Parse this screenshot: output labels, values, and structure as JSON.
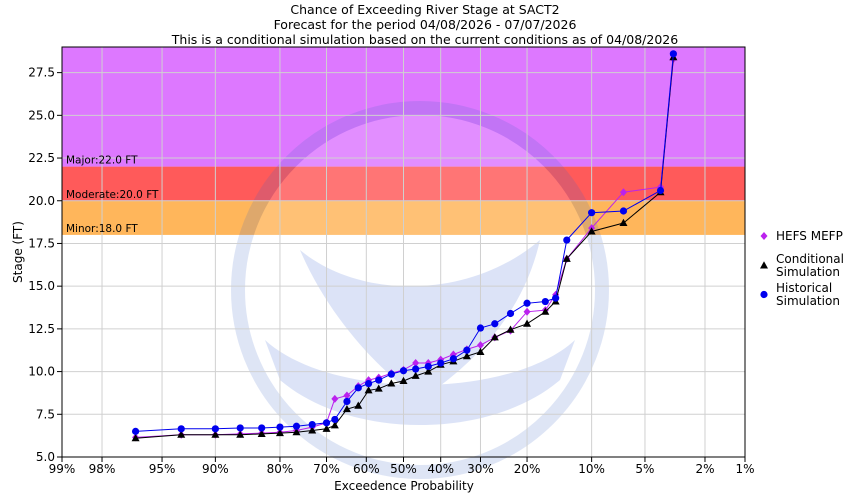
{
  "chart_data": {
    "type": "line",
    "title_lines": [
      "Chance of Exceeding River Stage at SACT2",
      "Forecast for the period 04/08/2026 - 07/07/2026",
      "This is a conditional simulation based on the current conditions as of 04/08/2026"
    ],
    "xlabel": "Exceedence Probability",
    "ylabel": "Stage (FT)",
    "x_scale": "normal-probability (reversed)",
    "x_ticks": [
      {
        "p": 0.99,
        "label": "99%"
      },
      {
        "p": 0.98,
        "label": "98%"
      },
      {
        "p": 0.95,
        "label": "95%"
      },
      {
        "p": 0.9,
        "label": "90%"
      },
      {
        "p": 0.8,
        "label": "80%"
      },
      {
        "p": 0.7,
        "label": "70%"
      },
      {
        "p": 0.6,
        "label": "60%"
      },
      {
        "p": 0.5,
        "label": "50%"
      },
      {
        "p": 0.4,
        "label": "40%"
      },
      {
        "p": 0.3,
        "label": "30%"
      },
      {
        "p": 0.2,
        "label": "20%"
      },
      {
        "p": 0.1,
        "label": "10%"
      },
      {
        "p": 0.05,
        "label": "5%"
      },
      {
        "p": 0.02,
        "label": "2%"
      },
      {
        "p": 0.01,
        "label": "1%"
      }
    ],
    "y_ticks": [
      "5.0",
      "7.5",
      "10.0",
      "12.5",
      "15.0",
      "17.5",
      "20.0",
      "22.5",
      "25.0",
      "27.5"
    ],
    "ylim": [
      5.0,
      29.0
    ],
    "flood_bands": [
      {
        "name": "Minor",
        "label": "Minor:18.0 FT",
        "from": 18.0,
        "to": 20.0,
        "color": "#ffb65b"
      },
      {
        "name": "Moderate",
        "label": "Moderate:20.0 FT",
        "from": 20.0,
        "to": 22.0,
        "color": "#ff5a5a"
      },
      {
        "name": "Major",
        "label": "Major:22.0 FT",
        "from": 22.0,
        "to": 29.0,
        "color": "#dd78ff"
      }
    ],
    "watermark_text": [
      "NATIONAL OCEANIC AND ATMOSPHERIC ADMINISTRATION",
      "U.S. DEPARTMENT OF COMMERCE"
    ],
    "series": [
      {
        "name": "HEFS MEFP",
        "color": "#bb22ee",
        "marker": "diamond",
        "points": [
          [
            0.966,
            6.15
          ],
          [
            0.935,
            6.3
          ],
          [
            0.9,
            6.3
          ],
          [
            0.867,
            6.35
          ],
          [
            0.833,
            6.4
          ],
          [
            0.8,
            6.45
          ],
          [
            0.767,
            6.55
          ],
          [
            0.733,
            6.75
          ],
          [
            0.7,
            7.0
          ],
          [
            0.68,
            8.4
          ],
          [
            0.65,
            8.6
          ],
          [
            0.621,
            9.15
          ],
          [
            0.594,
            9.5
          ],
          [
            0.567,
            9.65
          ],
          [
            0.533,
            9.9
          ],
          [
            0.5,
            10.1
          ],
          [
            0.467,
            10.5
          ],
          [
            0.433,
            10.5
          ],
          [
            0.4,
            10.7
          ],
          [
            0.367,
            11.0
          ],
          [
            0.333,
            11.3
          ],
          [
            0.3,
            11.55
          ],
          [
            0.267,
            12.0
          ],
          [
            0.233,
            12.4
          ],
          [
            0.2,
            13.5
          ],
          [
            0.167,
            13.6
          ],
          [
            0.15,
            14.5
          ],
          [
            0.133,
            16.6
          ],
          [
            0.1,
            18.4
          ],
          [
            0.067,
            20.5
          ],
          [
            0.04,
            20.8
          ],
          [
            0.033,
            28.3
          ]
        ]
      },
      {
        "name": "Conditional Simulation",
        "color": "#000000",
        "marker": "triangle",
        "points": [
          [
            0.966,
            6.1
          ],
          [
            0.935,
            6.3
          ],
          [
            0.9,
            6.3
          ],
          [
            0.867,
            6.3
          ],
          [
            0.833,
            6.35
          ],
          [
            0.8,
            6.4
          ],
          [
            0.767,
            6.45
          ],
          [
            0.733,
            6.55
          ],
          [
            0.7,
            6.65
          ],
          [
            0.68,
            6.85
          ],
          [
            0.65,
            7.8
          ],
          [
            0.621,
            8.0
          ],
          [
            0.594,
            8.9
          ],
          [
            0.567,
            9.0
          ],
          [
            0.533,
            9.3
          ],
          [
            0.5,
            9.45
          ],
          [
            0.467,
            9.75
          ],
          [
            0.433,
            10.0
          ],
          [
            0.4,
            10.4
          ],
          [
            0.367,
            10.6
          ],
          [
            0.333,
            10.9
          ],
          [
            0.3,
            11.15
          ],
          [
            0.267,
            12.0
          ],
          [
            0.233,
            12.45
          ],
          [
            0.2,
            12.8
          ],
          [
            0.167,
            13.5
          ],
          [
            0.15,
            14.1
          ],
          [
            0.133,
            16.6
          ],
          [
            0.1,
            18.2
          ],
          [
            0.067,
            18.7
          ],
          [
            0.04,
            20.5
          ],
          [
            0.033,
            28.4
          ]
        ]
      },
      {
        "name": "Historical Simulation",
        "color": "#0000ee",
        "marker": "circle",
        "points": [
          [
            0.966,
            6.5
          ],
          [
            0.935,
            6.65
          ],
          [
            0.9,
            6.65
          ],
          [
            0.867,
            6.7
          ],
          [
            0.833,
            6.7
          ],
          [
            0.8,
            6.75
          ],
          [
            0.767,
            6.8
          ],
          [
            0.733,
            6.9
          ],
          [
            0.7,
            7.0
          ],
          [
            0.68,
            7.2
          ],
          [
            0.65,
            8.25
          ],
          [
            0.621,
            9.05
          ],
          [
            0.594,
            9.3
          ],
          [
            0.567,
            9.5
          ],
          [
            0.533,
            9.85
          ],
          [
            0.5,
            10.05
          ],
          [
            0.467,
            10.15
          ],
          [
            0.433,
            10.3
          ],
          [
            0.4,
            10.5
          ],
          [
            0.367,
            10.75
          ],
          [
            0.333,
            11.25
          ],
          [
            0.3,
            12.55
          ],
          [
            0.267,
            12.8
          ],
          [
            0.233,
            13.4
          ],
          [
            0.2,
            14.0
          ],
          [
            0.167,
            14.1
          ],
          [
            0.15,
            14.3
          ],
          [
            0.133,
            17.7
          ],
          [
            0.1,
            19.3
          ],
          [
            0.067,
            19.4
          ],
          [
            0.04,
            20.6
          ],
          [
            0.033,
            28.6
          ]
        ]
      }
    ],
    "legend": {
      "placement": "right",
      "entries": [
        {
          "series": "HEFS MEFP",
          "lines": [
            "HEFS MEFP"
          ]
        },
        {
          "series": "Conditional Simulation",
          "lines": [
            "Conditional",
            "Simulation"
          ]
        },
        {
          "series": "Historical Simulation",
          "lines": [
            "Historical",
            "Simulation"
          ]
        }
      ]
    }
  }
}
